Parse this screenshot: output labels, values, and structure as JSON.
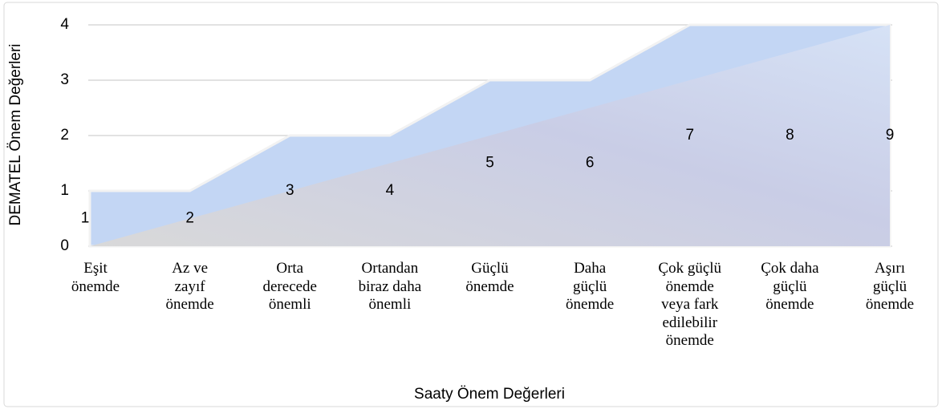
{
  "chart_data": {
    "type": "area",
    "x_label": "Saaty Önem Değerleri",
    "y_label": "DEMATEL Önem Değerleri",
    "categories": [
      "Eşit\nönemde",
      "Az ve\nzayıf\nönemde",
      "Orta\nderecede\nönemli",
      "Ortandan\nbiraz daha\nönemli",
      "Güçlü\nönemde",
      "Daha\ngüçlü\nönemde",
      "Çok güçlü\nönemde\nveya fark\nedilebilir\nönemde",
      "Çok daha\ngüçlü\nönemde",
      "Aşırı\ngüçlü\nönemde"
    ],
    "series": [
      {
        "name": "DEMATEL",
        "color": "#c3d6f4",
        "values": [
          1,
          1,
          2,
          2,
          3,
          3,
          4,
          4,
          4
        ]
      }
    ],
    "point_labels": [
      1,
      2,
      3,
      4,
      5,
      6,
      7,
      8,
      9
    ],
    "ylim": [
      0,
      4
    ],
    "yticks": [
      0,
      1,
      2,
      3,
      4
    ],
    "grid": true
  }
}
